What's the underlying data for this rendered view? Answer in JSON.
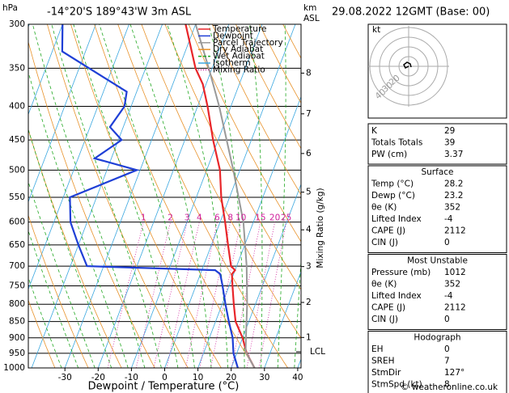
{
  "chart_data": {
    "type": "skewt",
    "title": "-14°20'S 189°43'W 3m ASL",
    "y_unit": "hPa",
    "y2_unit_top": "km",
    "y2_unit_bottom": "ASL",
    "xlabel": "Dewpoint / Temperature (°C)",
    "y2label": "Mixing Ratio (g/kg)",
    "xlim": [
      -41,
      41
    ],
    "xticks": [
      -30,
      -20,
      -10,
      0,
      10,
      20,
      30,
      40
    ],
    "ylim": [
      1000,
      300
    ],
    "yticks": [
      300,
      350,
      400,
      450,
      500,
      550,
      600,
      650,
      700,
      750,
      800,
      850,
      900,
      950,
      1000
    ],
    "log_scale": true,
    "y2ticks": [
      1,
      2,
      3,
      4,
      5,
      6,
      7,
      8
    ],
    "lcl": {
      "label": "LCL",
      "pressure": 945
    },
    "mixing_ratios": [
      1,
      2,
      3,
      4,
      6,
      8,
      10,
      15,
      20,
      25
    ],
    "series": [
      {
        "name": "Temperature",
        "color": "#e8262a",
        "pressure": [
          1000,
          950,
          925,
          900,
          850,
          800,
          750,
          720,
          710,
          700,
          650,
          600,
          550,
          500,
          450,
          400,
          370,
          350,
          300
        ],
        "values": [
          27,
          23,
          21.5,
          20,
          16,
          13.5,
          11,
          9.5,
          10,
          8.3,
          5,
          1.5,
          -2.5,
          -6,
          -11.5,
          -17,
          -21,
          -25,
          -33
        ]
      },
      {
        "name": "Dewpoint",
        "color": "#1f3fd6",
        "pressure": [
          1000,
          950,
          900,
          850,
          800,
          750,
          720,
          710,
          700,
          650,
          600,
          550,
          500,
          480,
          450,
          430,
          400,
          380,
          330,
          300
        ],
        "values": [
          22,
          19,
          17,
          14,
          11,
          8,
          6,
          4,
          -35,
          -40,
          -45,
          -48,
          -31,
          -45,
          -39,
          -44,
          -42,
          -43,
          -67,
          -70
        ]
      },
      {
        "name": "Parcel Trajectory",
        "color": "#999999",
        "pressure": [
          1000,
          945,
          900,
          800,
          700,
          600,
          500,
          400,
          350,
          300
        ],
        "values": [
          27,
          22.5,
          21,
          17.5,
          13,
          7,
          -2,
          -13.5,
          -21,
          -30
        ]
      },
      {
        "name": "Dry Adiabat",
        "color": "#e8922a",
        "pressure": [],
        "values": []
      },
      {
        "name": "Wet Adiabat",
        "color": "#22a822",
        "pressure": [],
        "values": []
      },
      {
        "name": "Isotherm",
        "color": "#3aa7e0",
        "pressure": [],
        "values": []
      },
      {
        "name": "Mixing Ratio",
        "color": "#d0209c",
        "pressure": [],
        "values": []
      }
    ]
  },
  "info": {
    "date": "29.08.2022 12GMT (Base: 00)",
    "hodograph": {
      "unit": "kt",
      "ring_labels": [
        "20",
        "30",
        "40"
      ]
    },
    "indices": [
      [
        "K",
        "29"
      ],
      [
        "Totals Totals",
        "39"
      ],
      [
        "PW (cm)",
        "3.37"
      ]
    ],
    "sections": [
      {
        "title": "Surface",
        "rows": [
          [
            "Temp (°C)",
            "28.2"
          ],
          [
            "Dewp (°C)",
            "23.2"
          ],
          [
            "θe (K)",
            "352"
          ],
          [
            "Lifted Index",
            "-4"
          ],
          [
            "CAPE (J)",
            "2112"
          ],
          [
            "CIN (J)",
            "0"
          ]
        ]
      },
      {
        "title": "Most Unstable",
        "rows": [
          [
            "Pressure (mb)",
            "1012"
          ],
          [
            "θe (K)",
            "352"
          ],
          [
            "Lifted Index",
            "-4"
          ],
          [
            "CAPE (J)",
            "2112"
          ],
          [
            "CIN (J)",
            "0"
          ]
        ]
      },
      {
        "title": "Hodograph",
        "rows": [
          [
            "EH",
            "0"
          ],
          [
            "SREH",
            "7"
          ],
          [
            "StmDir",
            "127°"
          ],
          [
            "StmSpd (kt)",
            "8"
          ]
        ]
      }
    ],
    "footer": "© weatheronline.co.uk"
  }
}
